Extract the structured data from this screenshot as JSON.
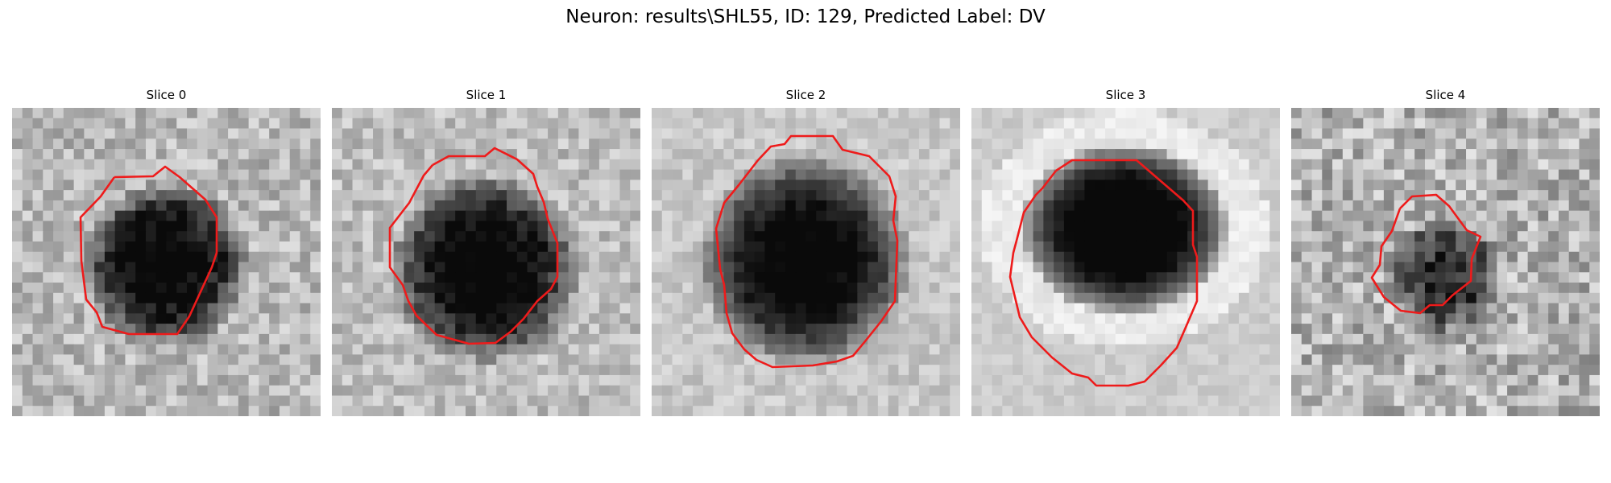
{
  "figure": {
    "title": "Neuron: results\\SHL55, ID: 129, Predicted Label: DV",
    "contour_color": "#ee1b1b"
  },
  "slices": [
    {
      "title": "Slice 0"
    },
    {
      "title": "Slice 1"
    },
    {
      "title": "Slice 2"
    },
    {
      "title": "Slice 3"
    },
    {
      "title": "Slice 4"
    }
  ]
}
